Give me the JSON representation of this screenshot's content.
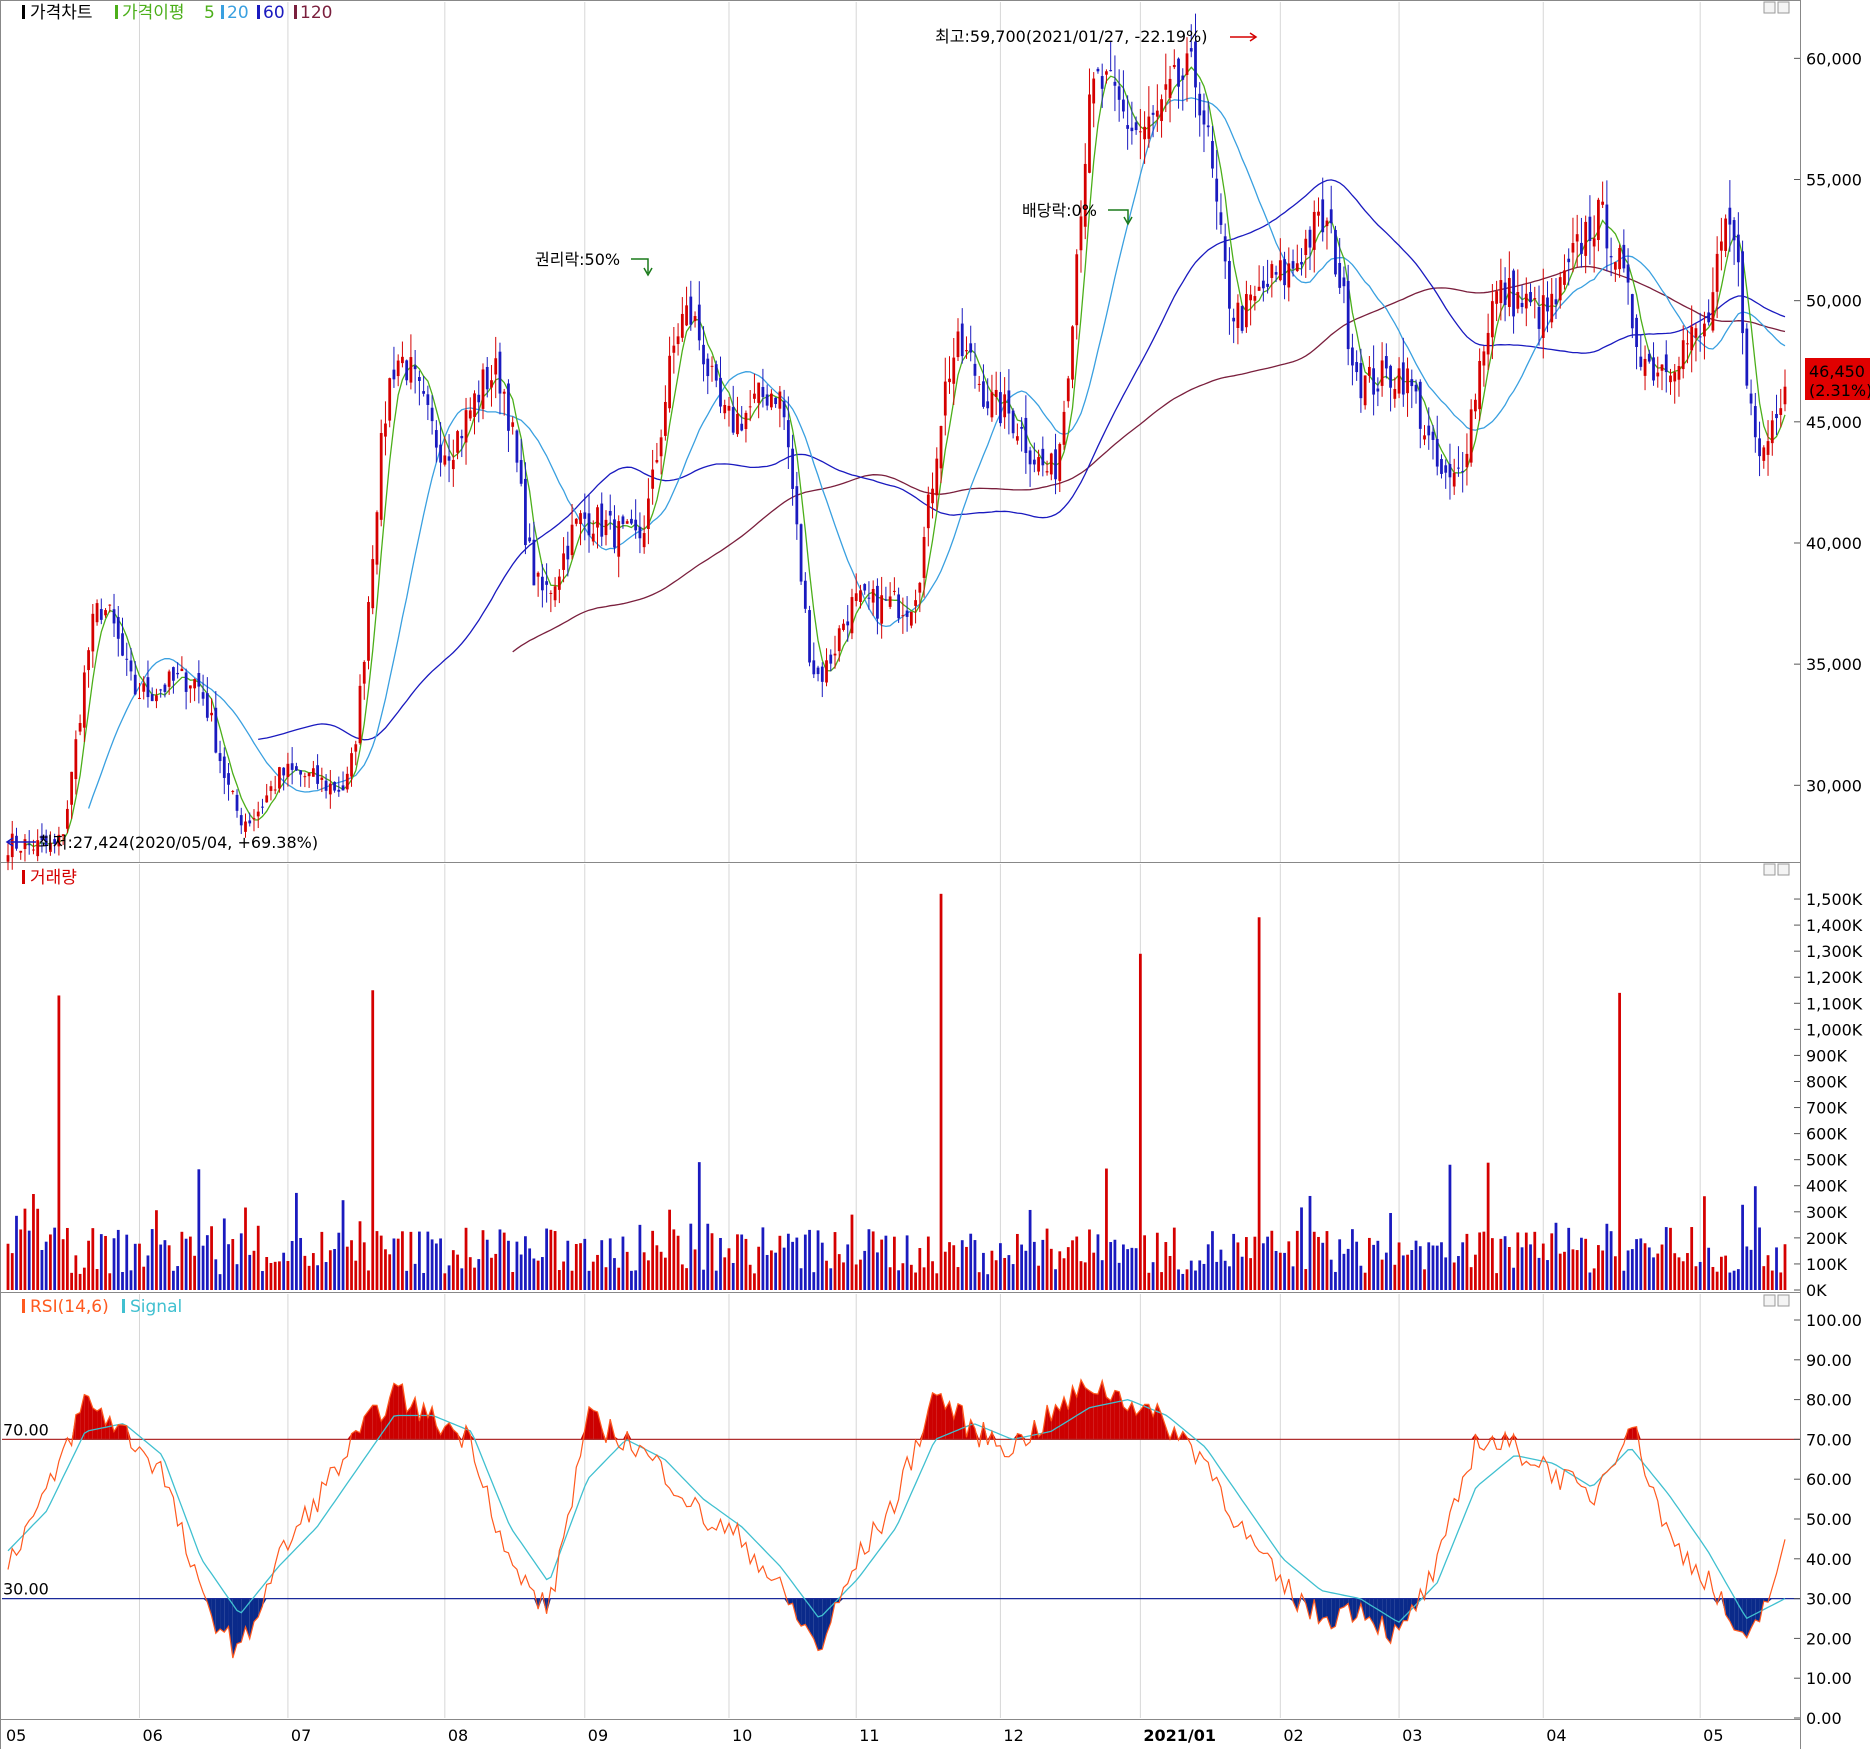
{
  "colors": {
    "up": "#d50000",
    "down": "#1a1abf",
    "ma5": "#4caf1a",
    "ma20": "#3aa0e0",
    "ma60": "#1a1abf",
    "ma120": "#7a1f3d",
    "rsi": "#ff5a1f",
    "signal": "#40c0d0",
    "overbought_fill": "#cc0000",
    "oversold_fill": "#0a2a8a",
    "grid": "#d6d6d6",
    "annotation_green": "#1a7a1a"
  },
  "price_panel": {
    "legend": {
      "chart_label": "가격차트",
      "ma_label": "가격이평",
      "ma5": "5",
      "ma20": "20",
      "ma60": "60",
      "ma120": "120"
    },
    "y_ticks": [
      "60,000",
      "55,000",
      "50,000",
      "45,000",
      "40,000",
      "35,000",
      "30,000"
    ],
    "high_annotation": "최고:59,700(2021/01/27, -22.19%)",
    "low_annotation": "최저:27,424(2020/05/04, +69.38%)",
    "rights_annotation": "권리락:50%",
    "dividend_annotation": "배당락:0%",
    "current_price": "46,450",
    "current_change": "(2.31%)"
  },
  "volume_panel": {
    "legend": "거래량",
    "y_ticks": [
      "1,500K",
      "1,400K",
      "1,300K",
      "1,200K",
      "1,100K",
      "1,000K",
      "900K",
      "800K",
      "700K",
      "600K",
      "500K",
      "400K",
      "300K",
      "200K",
      "100K",
      "0K"
    ]
  },
  "rsi_panel": {
    "legend_rsi": "RSI(14,6)",
    "legend_signal": "Signal",
    "y_ticks": [
      "100.00",
      "90.00",
      "80.00",
      "70.00",
      "60.00",
      "50.00",
      "40.00",
      "30.00",
      "20.00",
      "10.00",
      "0.00"
    ],
    "upper_label": "70.00",
    "lower_label": "30.00"
  },
  "x_axis": {
    "labels": [
      "05",
      "06",
      "07",
      "08",
      "09",
      "10",
      "11",
      "12",
      "2021/01",
      "02",
      "03",
      "04",
      "05"
    ]
  },
  "chart_data": [
    {
      "type": "candlestick",
      "title": "가격차트",
      "ylim": [
        27000,
        61500
      ],
      "months": [
        {
          "label": "05",
          "open": 27600,
          "close": 33800,
          "high": 38200,
          "low": 27424
        },
        {
          "label": "06",
          "open": 33800,
          "close": 31000,
          "high": 34500,
          "low": 28000
        },
        {
          "label": "07",
          "open": 30500,
          "close": 44000,
          "high": 48500,
          "low": 29800
        },
        {
          "label": "08",
          "open": 44000,
          "close": 41000,
          "high": 47500,
          "low": 37200
        },
        {
          "label": "09",
          "open": 41000,
          "close": 45000,
          "high": 50500,
          "low": 40000
        },
        {
          "label": "10",
          "open": 45000,
          "close": 37500,
          "high": 46500,
          "low": 33800
        },
        {
          "label": "11",
          "open": 37500,
          "close": 45500,
          "high": 48500,
          "low": 37500
        },
        {
          "label": "12",
          "open": 45500,
          "close": 57000,
          "high": 59400,
          "low": 42500
        },
        {
          "label": "2021/01",
          "open": 57000,
          "close": 51000,
          "high": 59700,
          "low": 49000
        },
        {
          "label": "02",
          "open": 51000,
          "close": 47000,
          "high": 53500,
          "low": 46500
        },
        {
          "label": "03",
          "open": 47000,
          "close": 49500,
          "high": 50500,
          "low": 41600
        },
        {
          "label": "04",
          "open": 49500,
          "close": 48500,
          "high": 54000,
          "low": 47000
        },
        {
          "label": "05",
          "open": 48500,
          "close": 46450,
          "high": 53500,
          "low": 43000
        }
      ]
    },
    {
      "type": "bar",
      "title": "거래량",
      "unit": "K",
      "ylim": [
        0,
        1550
      ],
      "spikes": [
        {
          "near": "05",
          "value": 1130
        },
        {
          "near": "07",
          "value": 1150
        },
        {
          "near": "11",
          "value": 1520
        },
        {
          "near": "2021/01",
          "value": 1290
        },
        {
          "near": "2021/01",
          "value": 1430
        },
        {
          "near": "04",
          "value": 1140
        }
      ]
    },
    {
      "type": "line",
      "title": "RSI(14,6)",
      "ylim": [
        0,
        100
      ],
      "series": [
        {
          "name": "RSI(14,6)",
          "values": [
            40,
            56,
            80,
            72,
            62,
            30,
            16,
            40,
            55,
            70,
            82,
            75,
            70,
            38,
            27,
            75,
            70,
            62,
            50,
            45,
            32,
            17,
            40,
            55,
            82,
            72,
            68,
            76,
            84,
            80,
            74,
            65,
            46,
            33,
            25,
            28,
            20,
            38,
            70,
            68,
            62,
            55,
            75,
            45,
            35,
            17,
            42
          ]
        },
        {
          "name": "Signal",
          "values": [
            42,
            52,
            72,
            74,
            66,
            40,
            26,
            38,
            48,
            62,
            76,
            76,
            72,
            48,
            34,
            60,
            70,
            65,
            55,
            48,
            38,
            25,
            35,
            48,
            70,
            74,
            70,
            72,
            78,
            80,
            76,
            68,
            54,
            40,
            32,
            30,
            24,
            34,
            58,
            66,
            64,
            58,
            68,
            56,
            42,
            25,
            30
          ]
        }
      ],
      "levels": [
        70,
        30
      ]
    }
  ]
}
